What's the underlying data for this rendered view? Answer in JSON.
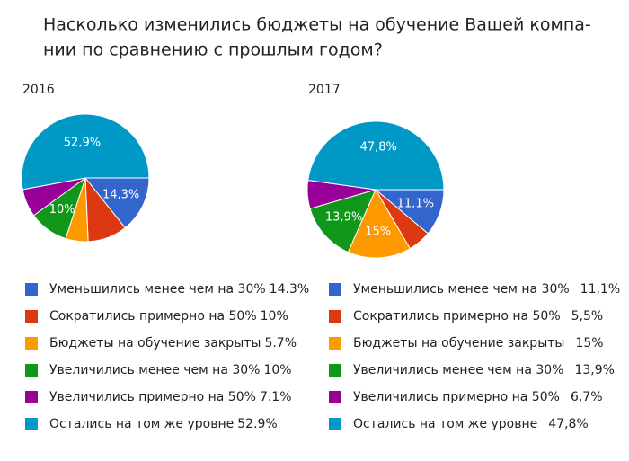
{
  "title": [
    "Насколько изменились бюджеты на обучение Вашей компа-",
    "нии по сравнению с прошлым годом?"
  ],
  "chart_data": [
    {
      "type": "pie",
      "title": "2016",
      "categories": [
        "Уменьшились менее чем на 30%",
        "Сократились примерно на 50%",
        "Бюджеты на обучение закрыты",
        "Увеличились менее чем на 30%",
        "Увеличились примерно на 50%",
        "Остались на том же уровне"
      ],
      "values": [
        14.3,
        10,
        5.7,
        10,
        7.1,
        52.9
      ],
      "value_labels": [
        "14,3%",
        null,
        null,
        "10%",
        null,
        "52,9%"
      ],
      "legend_labels": [
        "14.3%",
        "10%",
        "5.7%",
        "10%",
        "7.1%",
        "52.9%"
      ],
      "colors": [
        "#3366cc",
        "#dc3912",
        "#ff9900",
        "#109618",
        "#990099",
        "#0099c6"
      ]
    },
    {
      "type": "pie",
      "title": "2017",
      "categories": [
        "Уменьшились менее чем на 30%",
        "Сократились примерно на 50%",
        "Бюджеты на обучение закрыты",
        "Увеличились менее чем на 30%",
        "Увеличились примерно на 50%",
        "Остались на том же уровне"
      ],
      "values": [
        11.1,
        5.5,
        15,
        13.9,
        6.7,
        47.8
      ],
      "value_labels": [
        "11,1%",
        null,
        "15%",
        "13,9%",
        null,
        "47,8%"
      ],
      "legend_labels": [
        "11,1%",
        "5,5%",
        "15%",
        "13,9%",
        "6,7%",
        "47,8%"
      ],
      "colors": [
        "#3366cc",
        "#dc3912",
        "#ff9900",
        "#109618",
        "#990099",
        "#0099c6"
      ]
    }
  ]
}
